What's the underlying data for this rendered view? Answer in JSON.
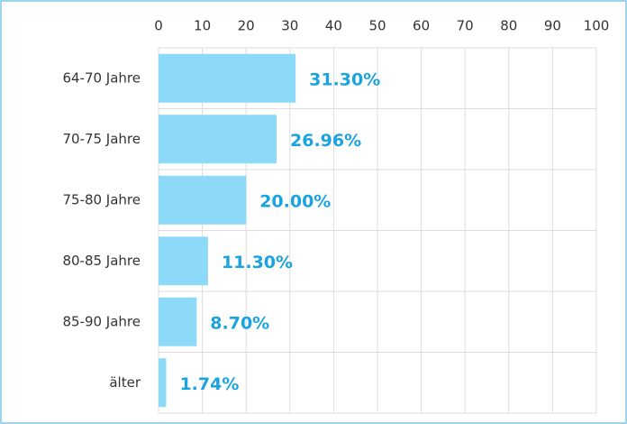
{
  "chart_data": {
    "type": "bar",
    "orientation": "horizontal",
    "categories": [
      "64-70 Jahre",
      "70-75 Jahre",
      "75-80 Jahre",
      "80-85 Jahre",
      "85-90 Jahre",
      "älter"
    ],
    "values": [
      31.3,
      26.96,
      20.0,
      11.3,
      8.7,
      1.74
    ],
    "value_labels": [
      "31.30%",
      "26.96%",
      "20.00%",
      "11.30%",
      "8.70%",
      "1.74%"
    ],
    "color": "#8dd9f8",
    "xlim": [
      0,
      100
    ],
    "xticks": [
      0,
      10,
      20,
      30,
      40,
      50,
      60,
      70,
      80,
      90,
      100
    ],
    "grid": true
  }
}
